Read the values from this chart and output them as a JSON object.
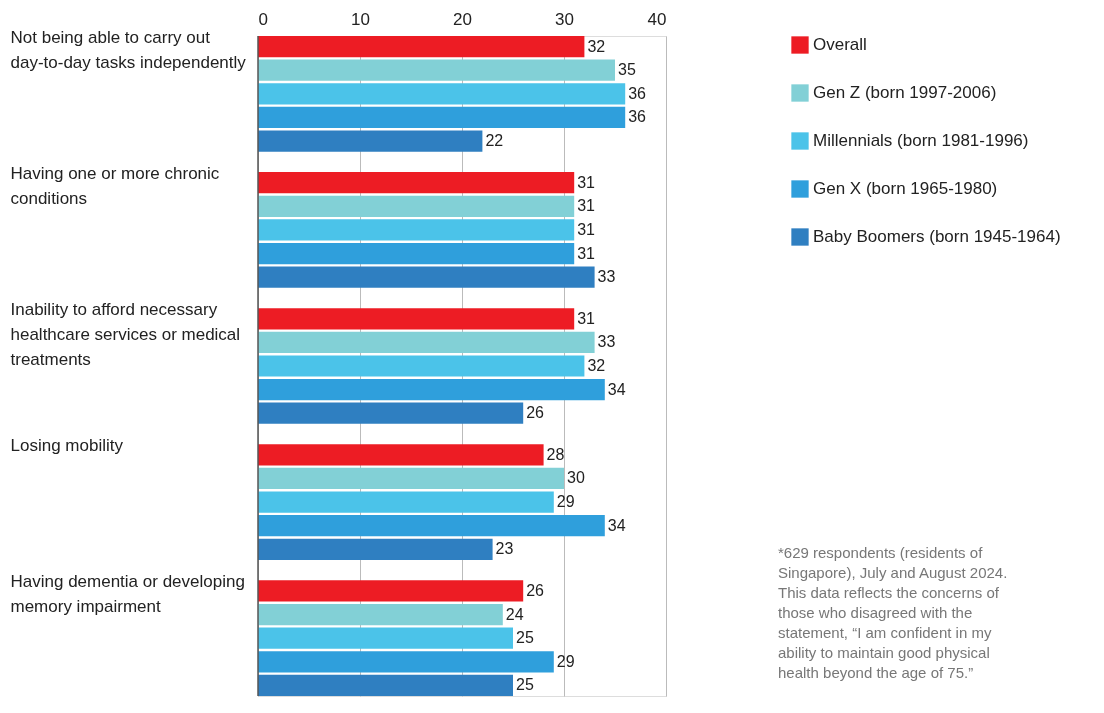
{
  "chart_data": {
    "type": "bar",
    "orientation": "horizontal",
    "categories": [
      "Not being able to carry out day-to-day tasks independently",
      "Having one or more chronic conditions",
      "Inability to afford necessary healthcare services or medical treatments",
      "Losing mobility",
      "Having dementia or developing memory impairment"
    ],
    "series": [
      {
        "name": "Overall",
        "color": "#ed1c24",
        "values": [
          32,
          31,
          31,
          28,
          26
        ]
      },
      {
        "name": "Gen Z (born 1997-2006)",
        "color": "#82d0d6",
        "values": [
          35,
          31,
          33,
          30,
          24
        ]
      },
      {
        "name": "Millennials (born 1981-1996)",
        "color": "#4bc3e9",
        "values": [
          36,
          31,
          32,
          29,
          25
        ]
      },
      {
        "name": "Gen X (born 1965-1980)",
        "color": "#2f9fdc",
        "values": [
          36,
          31,
          34,
          34,
          29
        ]
      },
      {
        "name": "Baby Boomers (born 1945-1964)",
        "color": "#2f7fc1",
        "values": [
          22,
          33,
          26,
          23,
          25
        ]
      }
    ],
    "xlim": [
      0,
      40
    ],
    "xticks": [
      0,
      10,
      20,
      30,
      40
    ],
    "grid": "x",
    "legend": "top right",
    "data_labels": true,
    "annotations": [
      "*629 respondents (residents of Singapore), July and August 2024. This data reflects the concerns of those who disagreed with the statement, “I am confident in my ability to maintain good physical health beyond the age of 75.”"
    ]
  }
}
